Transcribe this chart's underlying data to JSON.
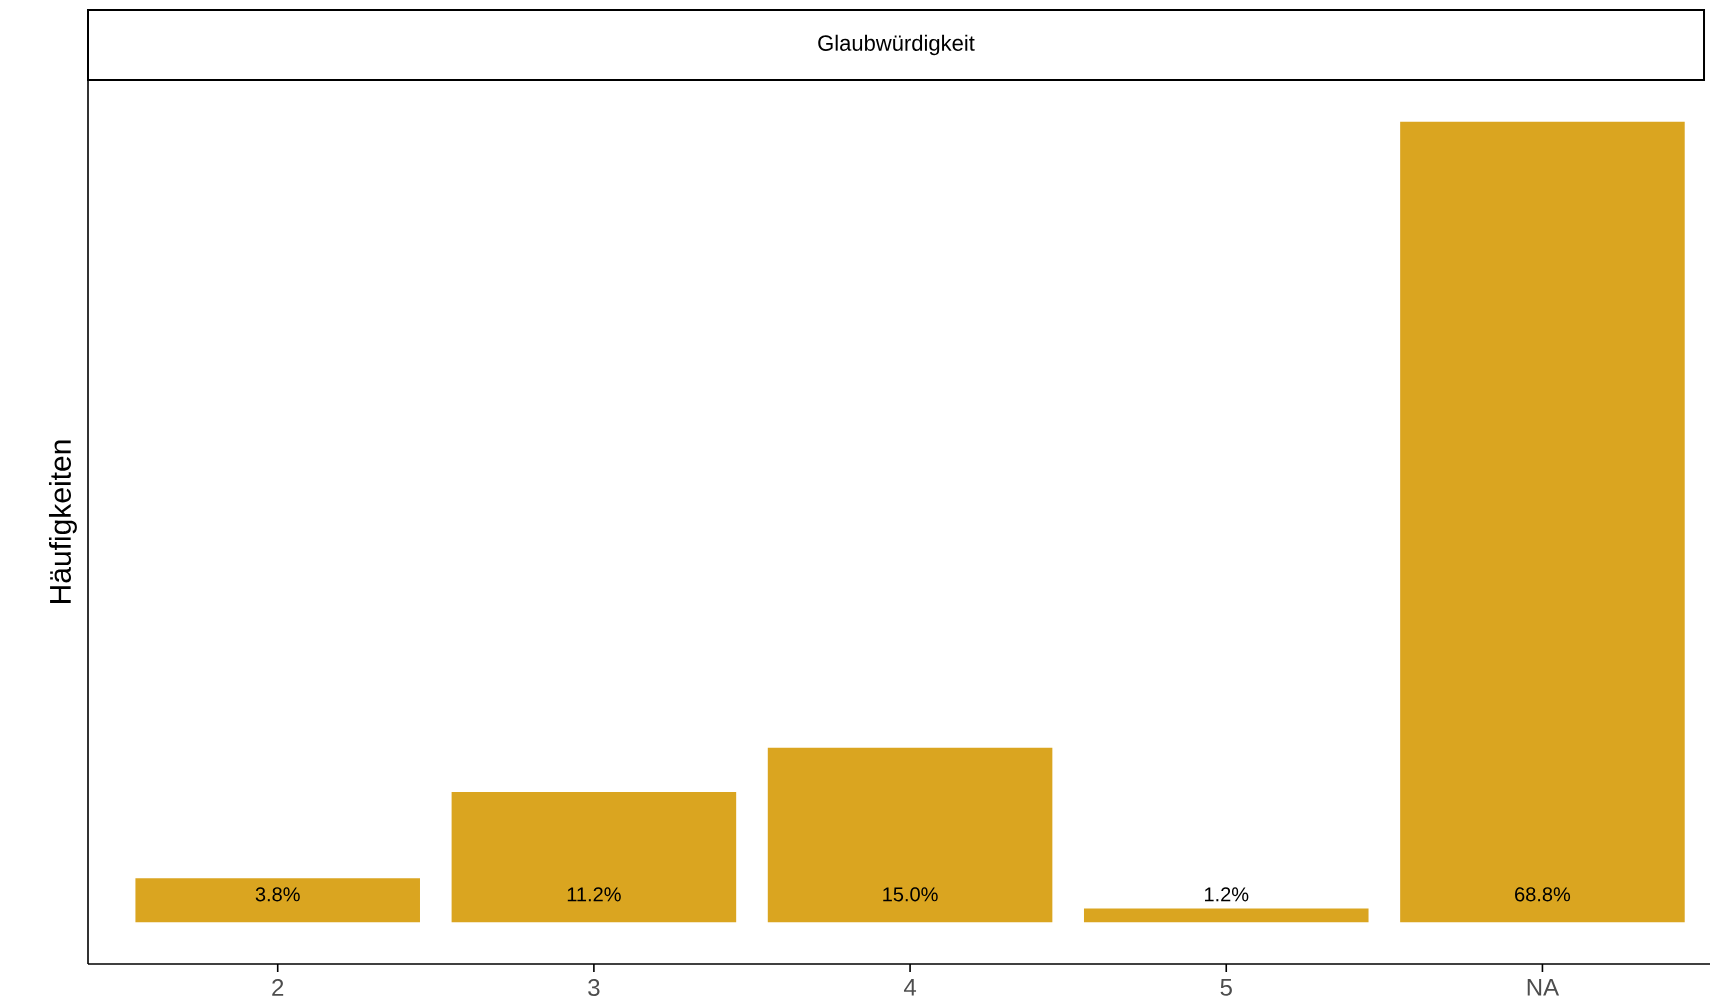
{
  "chart_data": {
    "type": "bar",
    "title": "Glaubwürdigkeit",
    "ylabel": "Häufigkeiten",
    "categories": [
      "2",
      "3",
      "4",
      "5",
      "NA"
    ],
    "values": [
      3.8,
      11.2,
      15.0,
      1.2,
      68.8
    ],
    "value_labels": [
      "3.8%",
      "11.2%",
      "15.0%",
      "1.2%",
      "68.8%"
    ],
    "color": "#daa520"
  }
}
